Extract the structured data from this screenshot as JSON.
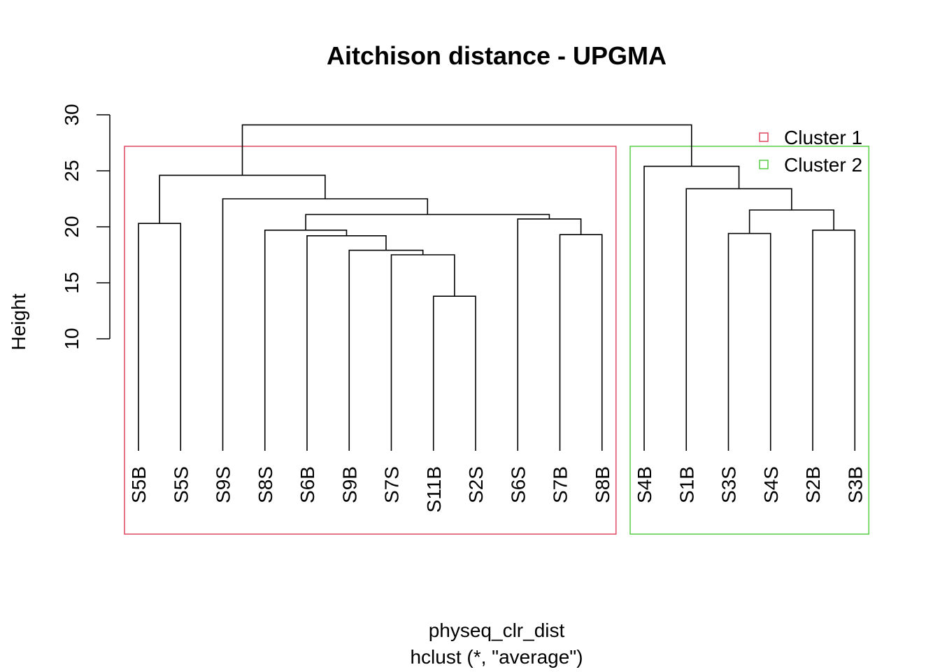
{
  "chart_data": {
    "type": "dendrogram",
    "title": "Aitchison distance - UPGMA",
    "ylabel": "Height",
    "xlabel": "physeq_clr_dist",
    "sub": "hclust (*, \"average\")",
    "yticks": [
      "10",
      "15",
      "20",
      "25",
      "30"
    ],
    "ylim": [
      10,
      30
    ],
    "leaves": [
      "S5B",
      "S5S",
      "S9S",
      "S8S",
      "S6B",
      "S9B",
      "S7S",
      "S11B",
      "S2S",
      "S6S",
      "S7B",
      "S8B",
      "S4B",
      "S1B",
      "S3S",
      "S4S",
      "S2B",
      "S3B"
    ],
    "merges": [
      {
        "id": "m1",
        "a": "S11B",
        "b": "S2S",
        "height": 13.8
      },
      {
        "id": "m2",
        "a": "S7S",
        "b": "m1",
        "height": 17.5
      },
      {
        "id": "m3",
        "a": "S9B",
        "b": "m2",
        "height": 17.9
      },
      {
        "id": "m4",
        "a": "S7B",
        "b": "S8B",
        "height": 19.3
      },
      {
        "id": "m5",
        "a": "S6B",
        "b": "m3",
        "height": 19.2
      },
      {
        "id": "m6",
        "a": "S3S",
        "b": "S4S",
        "height": 19.4
      },
      {
        "id": "m7",
        "a": "S8S",
        "b": "m5",
        "height": 19.7
      },
      {
        "id": "m8",
        "a": "S2B",
        "b": "S3B",
        "height": 19.7
      },
      {
        "id": "m9",
        "a": "S5B",
        "b": "S5S",
        "height": 20.3
      },
      {
        "id": "m10",
        "a": "S6S",
        "b": "m4",
        "height": 20.7
      },
      {
        "id": "m11",
        "a": "m7",
        "b": "m10",
        "height": 21.1
      },
      {
        "id": "m12",
        "a": "m6",
        "b": "m8",
        "height": 21.5
      },
      {
        "id": "m13",
        "a": "S9S",
        "b": "m11",
        "height": 22.5
      },
      {
        "id": "m14",
        "a": "S1B",
        "b": "m12",
        "height": 23.4
      },
      {
        "id": "m15",
        "a": "m9",
        "b": "m13",
        "height": 24.6
      },
      {
        "id": "m16",
        "a": "S4B",
        "b": "m14",
        "height": 25.4
      },
      {
        "id": "m17",
        "a": "m15",
        "b": "m16",
        "height": 29.1
      }
    ],
    "clusters": [
      {
        "name": "Cluster 1",
        "color": "#DF536B",
        "leaves": [
          "S5B",
          "S5S",
          "S9S",
          "S8S",
          "S6B",
          "S9B",
          "S7S",
          "S11B",
          "S2S",
          "S6S",
          "S7B",
          "S8B"
        ]
      },
      {
        "name": "Cluster 2",
        "color": "#61D04F",
        "leaves": [
          "S4B",
          "S1B",
          "S3S",
          "S4S",
          "S2B",
          "S3B"
        ]
      }
    ],
    "legend_position": "top-right"
  }
}
